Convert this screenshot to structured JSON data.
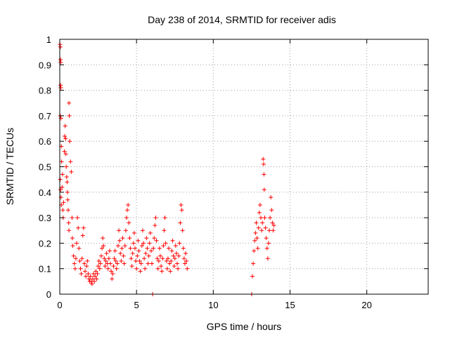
{
  "chart_data": {
    "type": "scatter",
    "title": "Day 238 of 2014, SRMTID for receiver adis",
    "xlabel": "GPS time / hours",
    "ylabel": "SRMTID / TECUs",
    "xlim": [
      0,
      24
    ],
    "ylim": [
      0,
      1
    ],
    "xticks": [
      0,
      5,
      10,
      15,
      20
    ],
    "xtick_labels": [
      "0",
      "5",
      "10",
      "15",
      "20"
    ],
    "yticks": [
      0,
      0.1,
      0.2,
      0.3,
      0.4,
      0.5,
      0.6,
      0.7,
      0.8,
      0.9,
      1
    ],
    "ytick_labels": [
      "0",
      "0.1",
      "0.2",
      "0.3",
      "0.4",
      "0.5",
      "0.6",
      "0.7",
      "0.8",
      "0.9",
      "1"
    ],
    "grid": true,
    "marker": "+",
    "color": "#ff0000",
    "series": [
      {
        "name": "SRMTID",
        "points": [
          [
            0.02,
            0.98
          ],
          [
            0.04,
            0.97
          ],
          [
            0.05,
            0.92
          ],
          [
            0.06,
            0.91
          ],
          [
            0.05,
            0.82
          ],
          [
            0.07,
            0.81
          ],
          [
            0.03,
            0.7
          ],
          [
            0.08,
            0.69
          ],
          [
            0.1,
            0.58
          ],
          [
            0.12,
            0.52
          ],
          [
            0.03,
            0.45
          ],
          [
            0.05,
            0.41
          ],
          [
            0.08,
            0.38
          ],
          [
            0.1,
            0.35
          ],
          [
            0.15,
            0.42
          ],
          [
            0.18,
            0.47
          ],
          [
            0.2,
            0.33
          ],
          [
            0.22,
            0.3
          ],
          [
            0.25,
            0.36
          ],
          [
            0.3,
            0.56
          ],
          [
            0.32,
            0.62
          ],
          [
            0.35,
            0.66
          ],
          [
            0.38,
            0.61
          ],
          [
            0.4,
            0.55
          ],
          [
            0.42,
            0.5
          ],
          [
            0.45,
            0.46
          ],
          [
            0.48,
            0.44
          ],
          [
            0.5,
            0.4
          ],
          [
            0.52,
            0.37
          ],
          [
            0.55,
            0.33
          ],
          [
            0.58,
            0.28
          ],
          [
            0.6,
            0.25
          ],
          [
            0.6,
            0.75
          ],
          [
            0.62,
            0.7
          ],
          [
            0.65,
            0.6
          ],
          [
            0.7,
            0.52
          ],
          [
            0.75,
            0.48
          ],
          [
            0.8,
            0.3
          ],
          [
            0.82,
            0.22
          ],
          [
            0.85,
            0.19
          ],
          [
            0.9,
            0.15
          ],
          [
            0.95,
            0.12
          ],
          [
            1.0,
            0.1
          ],
          [
            1.05,
            0.14
          ],
          [
            1.1,
            0.2
          ],
          [
            1.15,
            0.3
          ],
          [
            1.2,
            0.26
          ],
          [
            1.25,
            0.18
          ],
          [
            1.3,
            0.13
          ],
          [
            1.35,
            0.1
          ],
          [
            1.4,
            0.08
          ],
          [
            1.45,
            0.14
          ],
          [
            1.5,
            0.23
          ],
          [
            1.55,
            0.26
          ],
          [
            1.6,
            0.12
          ],
          [
            1.65,
            0.09
          ],
          [
            1.7,
            0.07
          ],
          [
            1.75,
            0.11
          ],
          [
            1.8,
            0.13
          ],
          [
            1.85,
            0.08
          ],
          [
            1.9,
            0.06
          ],
          [
            1.95,
            0.05
          ],
          [
            2.0,
            0.07
          ],
          [
            2.05,
            0.05
          ],
          [
            2.1,
            0.04
          ],
          [
            2.15,
            0.06
          ],
          [
            2.2,
            0.08
          ],
          [
            2.25,
            0.05
          ],
          [
            2.3,
            0.07
          ],
          [
            2.35,
            0.09
          ],
          [
            2.4,
            0.06
          ],
          [
            2.45,
            0.08
          ],
          [
            2.5,
            0.11
          ],
          [
            2.55,
            0.13
          ],
          [
            2.6,
            0.1
          ],
          [
            2.65,
            0.12
          ],
          [
            2.7,
            0.15
          ],
          [
            2.75,
            0.18
          ],
          [
            2.8,
            0.22
          ],
          [
            2.85,
            0.19
          ],
          [
            2.9,
            0.14
          ],
          [
            2.95,
            0.11
          ],
          [
            3.0,
            0.13
          ],
          [
            3.05,
            0.16
          ],
          [
            3.1,
            0.12
          ],
          [
            3.15,
            0.1
          ],
          [
            3.2,
            0.14
          ],
          [
            3.25,
            0.17
          ],
          [
            3.3,
            0.12
          ],
          [
            3.35,
            0.09
          ],
          [
            3.4,
            0.06
          ],
          [
            3.45,
            0.08
          ],
          [
            3.5,
            0.11
          ],
          [
            3.55,
            0.14
          ],
          [
            3.6,
            0.17
          ],
          [
            3.65,
            0.13
          ],
          [
            3.7,
            0.1
          ],
          [
            3.75,
            0.12
          ],
          [
            3.8,
            0.19
          ],
          [
            3.85,
            0.25
          ],
          [
            3.9,
            0.21
          ],
          [
            3.95,
            0.16
          ],
          [
            4.0,
            0.13
          ],
          [
            4.05,
            0.18
          ],
          [
            4.1,
            0.22
          ],
          [
            4.15,
            0.15
          ],
          [
            4.2,
            0.12
          ],
          [
            4.25,
            0.19
          ],
          [
            4.3,
            0.25
          ],
          [
            4.35,
            0.3
          ],
          [
            4.4,
            0.33
          ],
          [
            4.45,
            0.35
          ],
          [
            4.5,
            0.28
          ],
          [
            4.55,
            0.22
          ],
          [
            4.6,
            0.18
          ],
          [
            4.65,
            0.14
          ],
          [
            4.7,
            0.11
          ],
          [
            4.75,
            0.16
          ],
          [
            4.8,
            0.2
          ],
          [
            4.85,
            0.24
          ],
          [
            4.9,
            0.18
          ],
          [
            4.95,
            0.13
          ],
          [
            5.0,
            0.1
          ],
          [
            5.05,
            0.15
          ],
          [
            5.1,
            0.21
          ],
          [
            5.15,
            0.17
          ],
          [
            5.2,
            0.13
          ],
          [
            5.25,
            0.09
          ],
          [
            5.3,
            0.12
          ],
          [
            5.35,
            0.19
          ],
          [
            5.4,
            0.25
          ],
          [
            5.45,
            0.2
          ],
          [
            5.5,
            0.14
          ],
          [
            5.55,
            0.1
          ],
          [
            5.6,
            0.16
          ],
          [
            5.65,
            0.22
          ],
          [
            5.7,
            0.18
          ],
          [
            5.75,
            0.12
          ],
          [
            5.8,
            0.15
          ],
          [
            5.85,
            0.2
          ],
          [
            5.9,
            0.24
          ],
          [
            5.95,
            0.17
          ],
          [
            6.0,
            0.12
          ],
          [
            6.05,
            0.0
          ],
          [
            6.1,
            0.18
          ],
          [
            6.15,
            0.22
          ],
          [
            6.2,
            0.27
          ],
          [
            6.25,
            0.3
          ],
          [
            6.3,
            0.21
          ],
          [
            6.35,
            0.14
          ],
          [
            6.4,
            0.1
          ],
          [
            6.45,
            0.13
          ],
          [
            6.5,
            0.18
          ],
          [
            6.55,
            0.15
          ],
          [
            6.6,
            0.11
          ],
          [
            6.65,
            0.09
          ],
          [
            6.7,
            0.14
          ],
          [
            6.75,
            0.19
          ],
          [
            6.8,
            0.25
          ],
          [
            6.85,
            0.3
          ],
          [
            6.9,
            0.2
          ],
          [
            6.95,
            0.13
          ],
          [
            7.0,
            0.1
          ],
          [
            7.05,
            0.14
          ],
          [
            7.1,
            0.18
          ],
          [
            7.15,
            0.12
          ],
          [
            7.2,
            0.09
          ],
          [
            7.25,
            0.13
          ],
          [
            7.3,
            0.17
          ],
          [
            7.35,
            0.21
          ],
          [
            7.4,
            0.15
          ],
          [
            7.45,
            0.11
          ],
          [
            7.5,
            0.14
          ],
          [
            7.55,
            0.19
          ],
          [
            7.6,
            0.16
          ],
          [
            7.65,
            0.12
          ],
          [
            7.7,
            0.1
          ],
          [
            7.75,
            0.15
          ],
          [
            7.8,
            0.2
          ],
          [
            7.85,
            0.28
          ],
          [
            7.9,
            0.35
          ],
          [
            7.95,
            0.33
          ],
          [
            8.0,
            0.25
          ],
          [
            8.05,
            0.18
          ],
          [
            8.1,
            0.14
          ],
          [
            8.15,
            0.12
          ],
          [
            8.2,
            0.16
          ],
          [
            8.25,
            0.13
          ],
          [
            8.3,
            0.1
          ],
          [
            12.5,
            0.0
          ],
          [
            12.55,
            0.07
          ],
          [
            12.6,
            0.12
          ],
          [
            12.65,
            0.17
          ],
          [
            12.7,
            0.21
          ],
          [
            12.75,
            0.24
          ],
          [
            12.8,
            0.28
          ],
          [
            12.85,
            0.22
          ],
          [
            12.9,
            0.18
          ],
          [
            12.95,
            0.26
          ],
          [
            13.0,
            0.32
          ],
          [
            13.05,
            0.35
          ],
          [
            13.1,
            0.3
          ],
          [
            13.15,
            0.25
          ],
          [
            13.2,
            0.28
          ],
          [
            13.25,
            0.53
          ],
          [
            13.28,
            0.51
          ],
          [
            13.3,
            0.47
          ],
          [
            13.32,
            0.41
          ],
          [
            13.35,
            0.3
          ],
          [
            13.4,
            0.26
          ],
          [
            13.45,
            0.22
          ],
          [
            13.5,
            0.18
          ],
          [
            13.55,
            0.14
          ],
          [
            13.6,
            0.2
          ],
          [
            13.65,
            0.25
          ],
          [
            13.7,
            0.3
          ],
          [
            13.75,
            0.38
          ],
          [
            13.8,
            0.33
          ],
          [
            13.85,
            0.28
          ],
          [
            13.9,
            0.25
          ],
          [
            13.95,
            0.27
          ]
        ]
      }
    ]
  }
}
